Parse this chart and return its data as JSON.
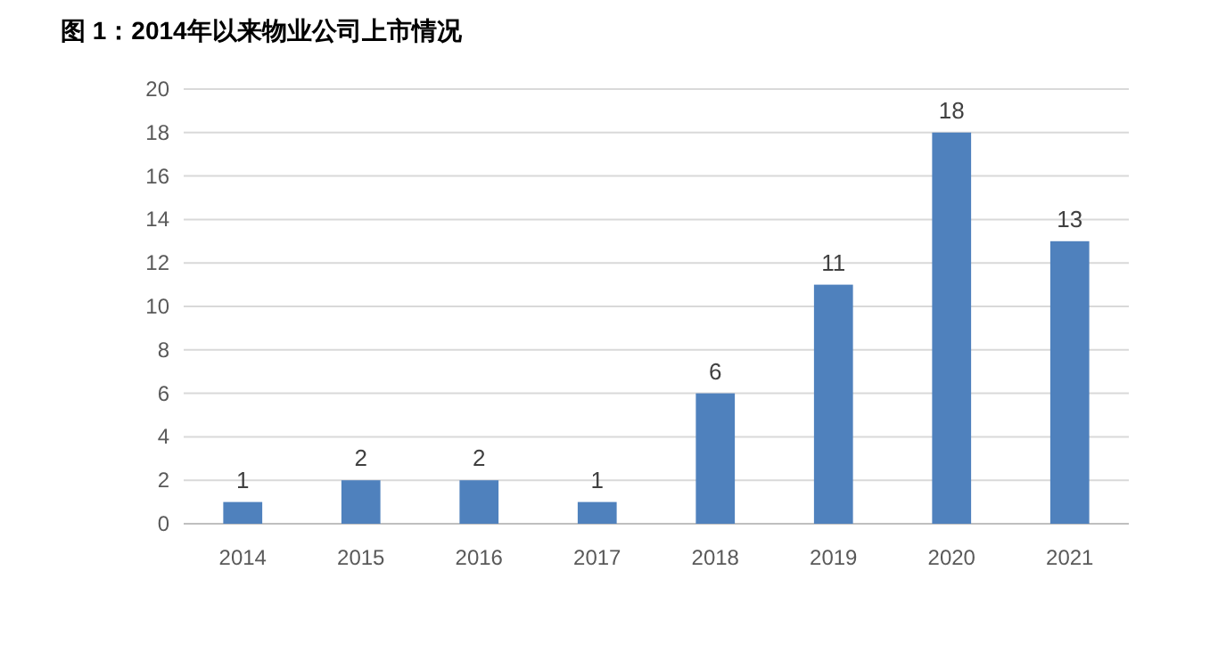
{
  "chart_data": {
    "type": "bar",
    "title": "图 1：2014年以来物业公司上市情况",
    "categories": [
      "2014",
      "2015",
      "2016",
      "2017",
      "2018",
      "2019",
      "2020",
      "2021"
    ],
    "values": [
      1,
      2,
      2,
      1,
      6,
      11,
      18,
      13
    ],
    "color": "#4f81bd",
    "ylim": [
      0,
      20
    ],
    "yticks": [
      0,
      2,
      4,
      6,
      8,
      10,
      12,
      14,
      16,
      18,
      20
    ],
    "grid": "y",
    "data_labels": true
  }
}
